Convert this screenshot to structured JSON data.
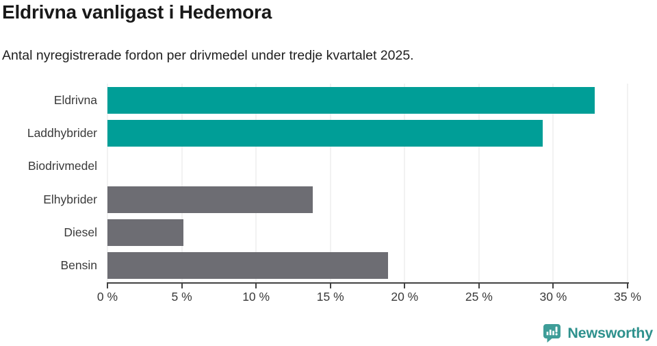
{
  "header": {
    "title": "Eldrivna vanligast i Hedemora",
    "subtitle": "Antal nyregistrerade fordon per drivmedel under tredje kvartalet 2025."
  },
  "chart_data": {
    "type": "bar",
    "orientation": "horizontal",
    "title": "Eldrivna vanligast i Hedemora",
    "subtitle": "Antal nyregistrerade fordon per drivmedel under tredje kvartalet 2025.",
    "categories": [
      "Eldrivna",
      "Laddhybrider",
      "Biodrivmedel",
      "Elhybrider",
      "Diesel",
      "Bensin"
    ],
    "values": [
      32.8,
      29.3,
      0,
      13.8,
      5.1,
      18.9
    ],
    "unit": "%",
    "xlabel": "",
    "ylabel": "",
    "xlim": [
      0,
      35
    ],
    "x_tick_values": [
      0,
      5,
      10,
      15,
      20,
      25,
      30,
      35
    ],
    "x_tick_labels": [
      "0 %",
      "5 %",
      "10 %",
      "15 %",
      "20 %",
      "25 %",
      "30 %",
      "35 %"
    ],
    "grid": true,
    "legend": false,
    "highlight_color": "#009e97",
    "default_color": "#6d6d73",
    "bar_colors": [
      "#009e97",
      "#009e97",
      "#6d6d73",
      "#6d6d73",
      "#6d6d73",
      "#6d6d73"
    ],
    "gridline_color": "#e4e4e4",
    "axis_color": "#424242"
  },
  "footer": {
    "logo_text": "Newsworthy",
    "logo_icon": "newsworthy-speech-bubble-barchart-icon",
    "logo_icon_color": "#3e9d98",
    "logo_text_color": "#2e918d"
  }
}
